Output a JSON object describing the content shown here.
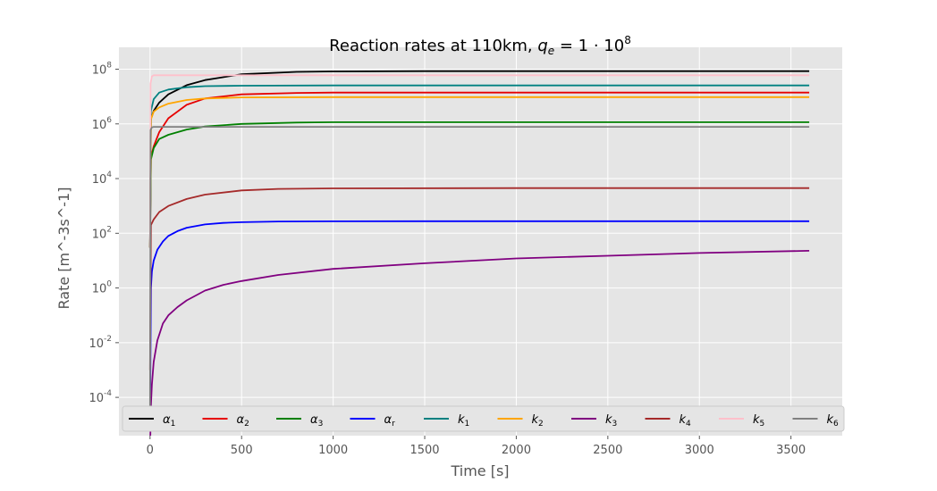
{
  "chart_data": {
    "type": "line",
    "title_prefix": "Reaction rates at 110km, ",
    "title_math_base": "q",
    "title_math_sub": "e",
    "title_math_rest": " = 1 · 10",
    "title_math_exp": "8",
    "xlabel": "Time [s]",
    "ylabel": "Rate [m^-3s^-1]",
    "x_range": [
      -170,
      3780
    ],
    "y_log10_range": [
      -5.4,
      8.8
    ],
    "x_ticks": [
      0,
      500,
      1000,
      1500,
      2000,
      2500,
      3000,
      3500
    ],
    "y_tick_exponents": [
      -4,
      -2,
      0,
      2,
      4,
      6,
      8
    ],
    "y_tick_base": "10",
    "y_tick_labels": [
      "-4",
      "-2",
      "0",
      "2",
      "4",
      "6",
      "8"
    ],
    "grid": true,
    "legend_placement": "bottom-center",
    "series": [
      {
        "name": "α",
        "sub": "1",
        "color": "#000000",
        "x": [
          0,
          5,
          20,
          50,
          100,
          200,
          300,
          500,
          800,
          1000,
          1500,
          2000,
          3000,
          3600
        ],
        "y": [
          30,
          1500000,
          3000000,
          6000000,
          12000000,
          26000000,
          40000000,
          65000000,
          80000000,
          83000000,
          85000000,
          85000000,
          85000000,
          85000000
        ]
      },
      {
        "name": "α",
        "sub": "2",
        "color": "#e60000",
        "x": [
          0,
          5,
          20,
          50,
          100,
          200,
          300,
          500,
          800,
          1000,
          2000,
          3000,
          3600
        ],
        "y": [
          30,
          60000,
          150000,
          500000,
          1600000,
          5000000,
          8500000,
          12000000,
          13500000,
          14000000,
          14000000,
          14000000,
          14000000
        ]
      },
      {
        "name": "α",
        "sub": "3",
        "color": "#008000",
        "x": [
          0,
          5,
          20,
          50,
          100,
          200,
          300,
          500,
          800,
          1000,
          2000,
          3000,
          3600
        ],
        "y": [
          30,
          50000,
          130000,
          280000,
          400000,
          620000,
          800000,
          1000000,
          1120000,
          1150000,
          1150000,
          1150000,
          1150000
        ]
      },
      {
        "name": "α",
        "sub": "r",
        "color": "#0000ff",
        "x": [
          0,
          5,
          10,
          20,
          40,
          70,
          100,
          150,
          200,
          300,
          400,
          500,
          700,
          1000,
          1500,
          2000,
          3000,
          3600
        ],
        "y": [
          1e-05,
          1,
          4,
          10,
          25,
          50,
          80,
          120,
          160,
          210,
          240,
          255,
          270,
          275,
          277,
          277,
          277,
          277
        ]
      },
      {
        "name": "k",
        "sub": "1",
        "color": "#008080",
        "x": [
          0,
          5,
          20,
          50,
          100,
          200,
          300,
          500,
          1000,
          2000,
          3000,
          3600
        ],
        "y": [
          30,
          3000000,
          8000000,
          14000000,
          18000000,
          22000000,
          24000000,
          25000000,
          25500000,
          25500000,
          25500000,
          25500000
        ]
      },
      {
        "name": "k",
        "sub": "2",
        "color": "#ffa500",
        "x": [
          0,
          5,
          20,
          50,
          100,
          200,
          300,
          500,
          1000,
          2000,
          3000,
          3600
        ],
        "y": [
          30,
          1500000,
          2800000,
          4000000,
          5500000,
          7500000,
          8500000,
          9300000,
          9500000,
          9500000,
          9500000,
          9500000
        ]
      },
      {
        "name": "k",
        "sub": "3",
        "color": "#800080",
        "x": [
          0,
          5,
          10,
          20,
          40,
          70,
          100,
          150,
          200,
          300,
          400,
          500,
          700,
          1000,
          1500,
          2000,
          2500,
          3000,
          3600
        ],
        "y": [
          1e-06,
          5e-05,
          0.0003,
          0.002,
          0.012,
          0.05,
          0.1,
          0.2,
          0.35,
          0.8,
          1.3,
          1.8,
          3,
          5,
          8,
          12,
          15,
          19,
          23
        ]
      },
      {
        "name": "k",
        "sub": "4",
        "color": "#a52a2a",
        "x": [
          0,
          5,
          20,
          50,
          100,
          200,
          300,
          500,
          700,
          1000,
          2000,
          3000,
          3600
        ],
        "y": [
          0.001,
          200,
          320,
          600,
          1000,
          1800,
          2600,
          3700,
          4200,
          4400,
          4500,
          4500,
          4500
        ]
      },
      {
        "name": "k",
        "sub": "5",
        "color": "#ffc0cb",
        "x": [
          0,
          3,
          10,
          20,
          100,
          1000,
          2000,
          3000,
          3600
        ],
        "y": [
          30,
          30000000,
          55000000,
          60000000,
          60000000,
          60000000,
          60000000,
          60000000,
          60000000
        ]
      },
      {
        "name": "k",
        "sub": "6",
        "color": "#808080",
        "x": [
          0,
          3,
          10,
          20,
          100,
          1000,
          2000,
          3000,
          3600
        ],
        "y": [
          1e-05,
          600000,
          750000,
          780000,
          780000,
          780000,
          780000,
          780000,
          780000
        ]
      }
    ]
  }
}
